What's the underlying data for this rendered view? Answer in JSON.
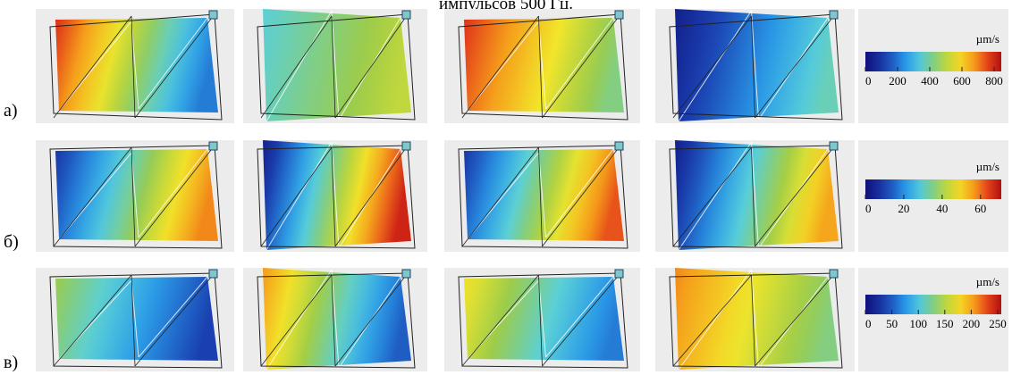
{
  "caption": "импульсов 500 Гц.",
  "rows": [
    {
      "label": "а)",
      "colorbar": {
        "unit": "µm/s",
        "ticks": [
          "0",
          "200",
          "400",
          "600",
          "800"
        ]
      }
    },
    {
      "label": "б)",
      "colorbar": {
        "unit": "µm/s",
        "ticks": [
          "0",
          "20",
          "40",
          "60"
        ]
      }
    },
    {
      "label": "в)",
      "colorbar": {
        "unit": "µm/s",
        "ticks": [
          "0",
          "50",
          "100",
          "150",
          "200",
          "250"
        ]
      }
    }
  ]
}
